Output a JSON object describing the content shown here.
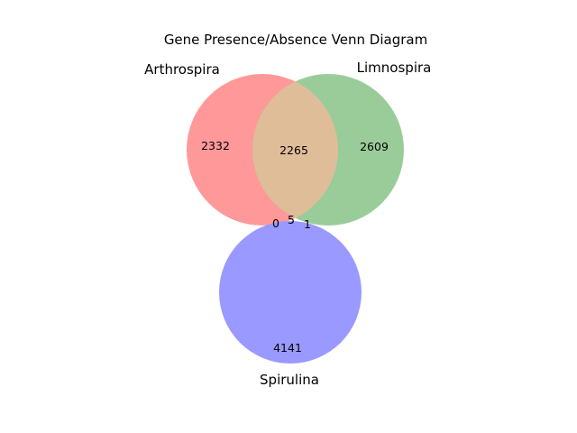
{
  "title": "Gene Presence/Absence Venn Diagram",
  "sets": [
    {
      "name": "Arthrospira",
      "color": "#ff9999"
    },
    {
      "name": "Limnospira",
      "color": "#99cc99"
    },
    {
      "name": "Spirulina",
      "color": "#9999ff"
    }
  ],
  "overlap_color": "#e0bd99",
  "regions": [
    {
      "sets": [
        "Arthrospira"
      ],
      "count": "2332"
    },
    {
      "sets": [
        "Limnospira"
      ],
      "count": "2609"
    },
    {
      "sets": [
        "Arthrospira",
        "Limnospira"
      ],
      "count": "2265"
    },
    {
      "sets": [
        "Arthrospira",
        "Spirulina"
      ],
      "count": "0"
    },
    {
      "sets": [
        "Arthrospira",
        "Limnospira",
        "Spirulina"
      ],
      "count": "5"
    },
    {
      "sets": [
        "Limnospira",
        "Spirulina"
      ],
      "count": "1"
    },
    {
      "sets": [
        "Spirulina"
      ],
      "count": "4141"
    }
  ]
}
